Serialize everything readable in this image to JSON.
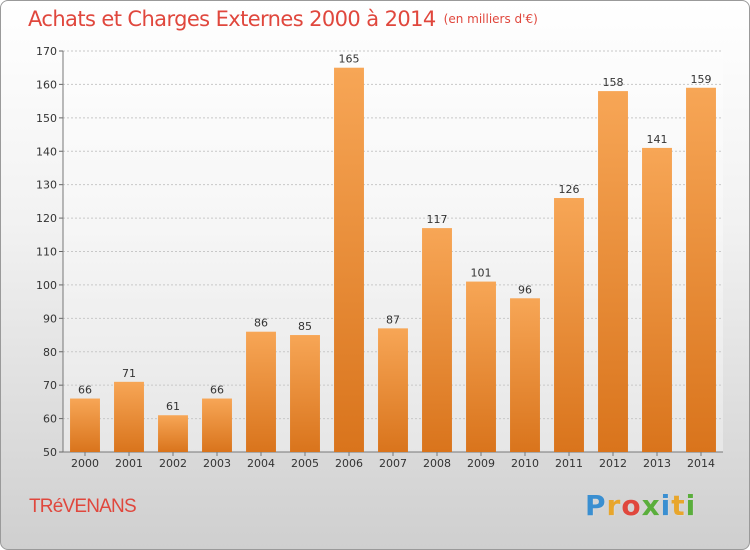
{
  "title": "Achats et Charges Externes 2000 à 2014",
  "subtitle": "(en milliers d'€)",
  "commune": "TRéVENANS",
  "logo": {
    "text": "Proxiti",
    "letters": [
      {
        "char": "P",
        "color": "#3a8fd1"
      },
      {
        "char": "r",
        "color": "#e8a62c"
      },
      {
        "char": "o",
        "color": "#e0473d"
      },
      {
        "char": "x",
        "color": "#5aae3c"
      },
      {
        "char": "i",
        "color": "#3a8fd1"
      },
      {
        "char": "t",
        "color": "#e8a62c"
      },
      {
        "char": "i",
        "color": "#5aae3c"
      }
    ]
  },
  "colors": {
    "bar_light": "#f7a656",
    "bar_dark": "#d9741c",
    "accent": "#e0473d"
  },
  "chart_data": {
    "type": "bar",
    "categories": [
      "2000",
      "2001",
      "2002",
      "2003",
      "2004",
      "2005",
      "2006",
      "2007",
      "2008",
      "2009",
      "2010",
      "2011",
      "2012",
      "2013",
      "2014"
    ],
    "values": [
      66,
      71,
      61,
      66,
      86,
      85,
      165,
      87,
      117,
      101,
      96,
      126,
      158,
      141,
      159
    ],
    "ylim": [
      50,
      170
    ],
    "yticks": [
      50,
      60,
      70,
      80,
      90,
      100,
      110,
      120,
      130,
      140,
      150,
      160,
      170
    ],
    "grid": true,
    "xlabel": "",
    "ylabel": ""
  }
}
